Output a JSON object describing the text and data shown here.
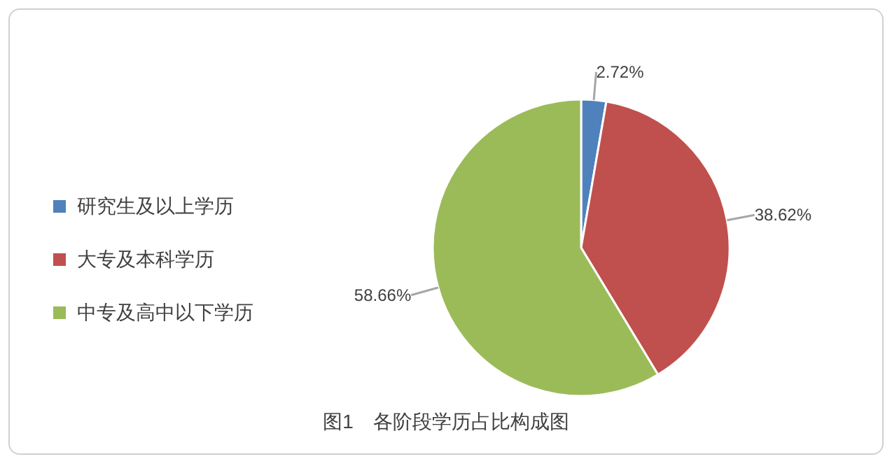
{
  "chart_data": {
    "type": "pie",
    "title": "图1　各阶段学历占比构成图",
    "categories": [
      "研究生及以上学历",
      "大专及本科学历",
      "中专及高中以下学历"
    ],
    "values": [
      2.72,
      38.62,
      58.66
    ],
    "value_labels": [
      "2.72%",
      "38.62%",
      "58.66%"
    ],
    "colors": [
      "#4f81bd",
      "#c0504d",
      "#9bbb59"
    ],
    "legend": "left"
  }
}
